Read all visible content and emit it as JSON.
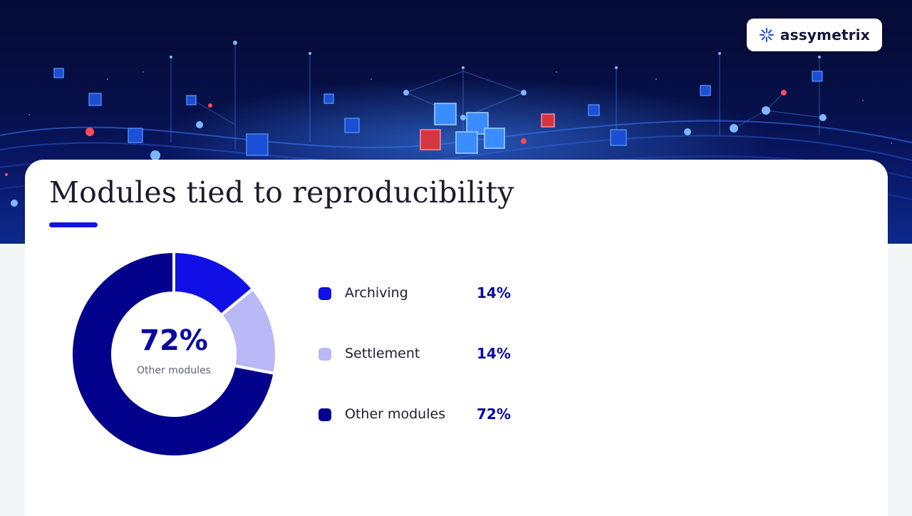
{
  "brand": {
    "name": "assymetrix",
    "logo_icon": "starburst-icon"
  },
  "slide": {
    "title": "Modules tied to reproducibility"
  },
  "colors": {
    "accent": "#1414e0",
    "archiving": "#0f0fe6",
    "settlement": "#b9b9f7",
    "other_modules": "#02028c",
    "value_text": "#0a0aa0"
  },
  "chart_data": {
    "type": "pie",
    "variant": "donut",
    "center": {
      "value": "72%",
      "label": "Other modules"
    },
    "legend_placement": "right",
    "slices": [
      {
        "name": "Archiving",
        "value": 14,
        "display": "14%",
        "color": "#0f0fe6"
      },
      {
        "name": "Settlement",
        "value": 14,
        "display": "14%",
        "color": "#b9b9f7"
      },
      {
        "name": "Other modules",
        "value": 72,
        "display": "72%",
        "color": "#02028c"
      }
    ]
  }
}
